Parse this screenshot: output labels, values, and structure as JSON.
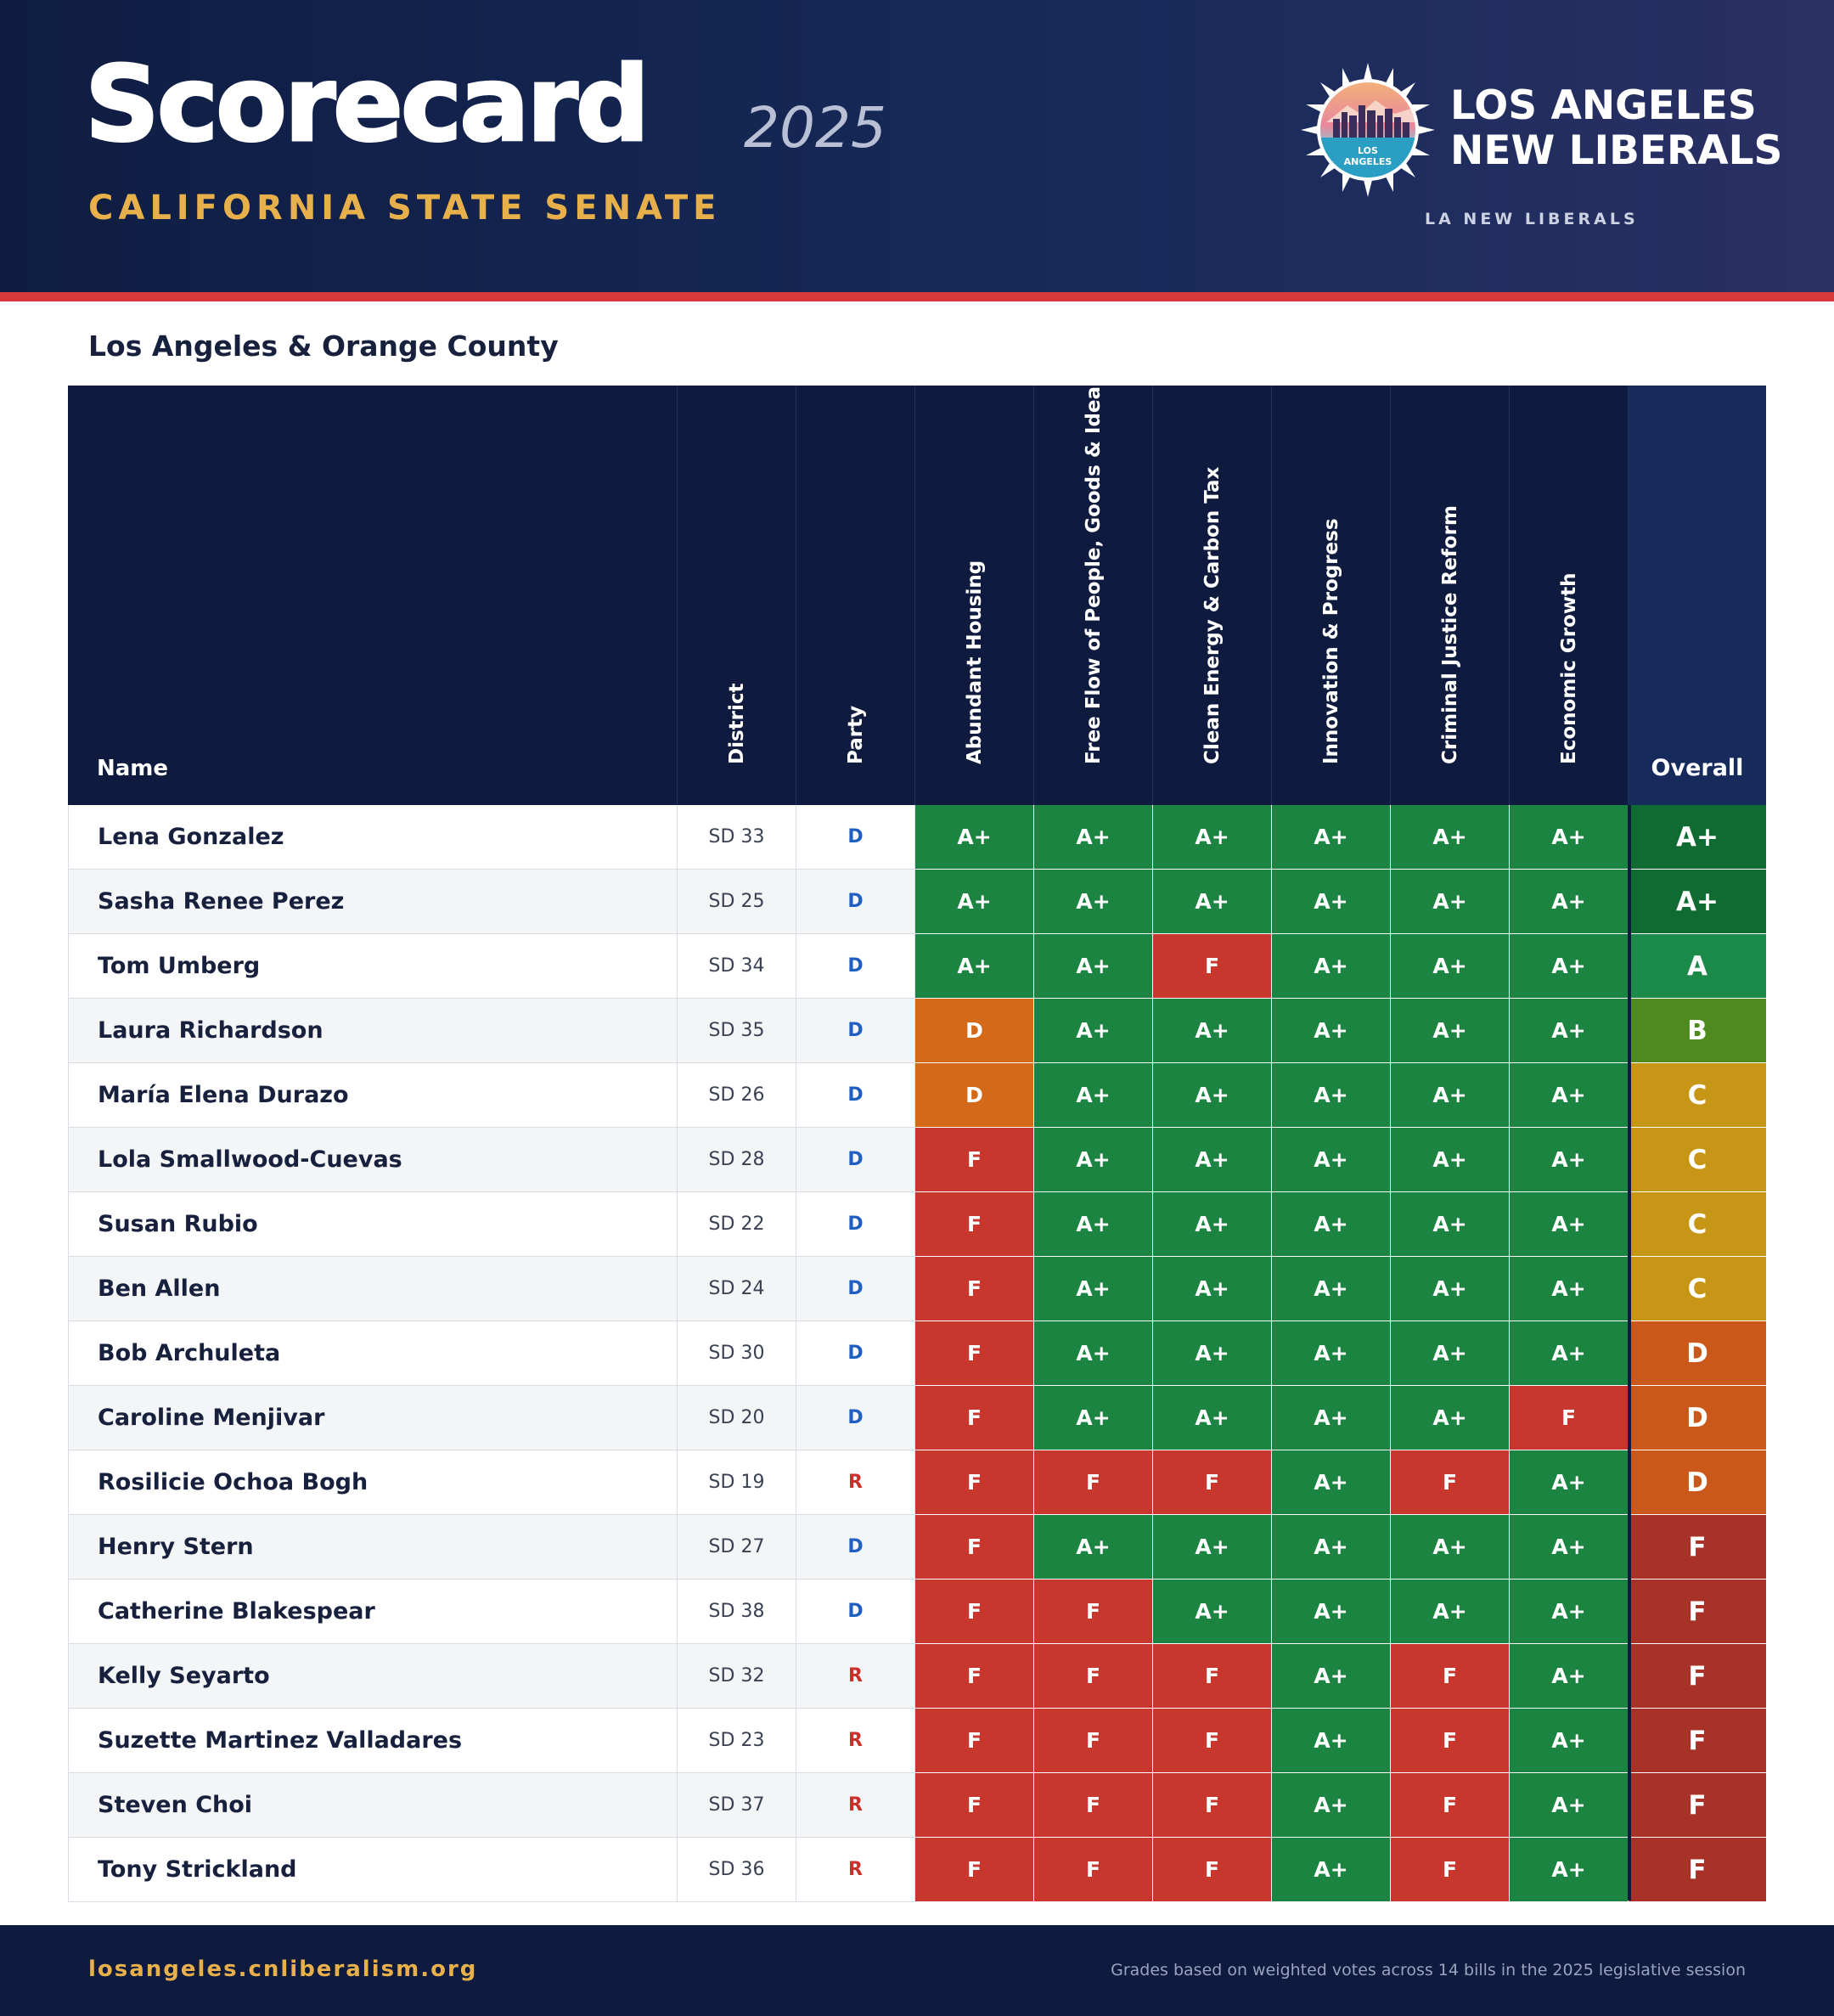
{
  "header": {
    "title": "Scorecard",
    "year": "2025",
    "subtitle": "CALIFORNIA STATE SENATE",
    "org_name_line1": "LOS ANGELES",
    "org_name_line2": "NEW LIBERALS",
    "org_tag": "LA NEW LIBERALS",
    "logo_text_line1": "LOS",
    "logo_text_line2": "ANGELES"
  },
  "region": "Los Angeles & Orange County",
  "table": {
    "columns": {
      "name": "Name",
      "district": "District",
      "party": "Party",
      "categories": [
        "Abundant Housing",
        "Free Flow of People, Goods & Ideas",
        "Clean Energy & Carbon Tax",
        "Innovation & Progress",
        "Criminal Justice Reform",
        "Economic Growth"
      ],
      "overall": "Overall"
    },
    "rows": [
      {
        "name": "Lena Gonzalez",
        "district": "SD 33",
        "party": "D",
        "grades": [
          "A+",
          "A+",
          "A+",
          "A+",
          "A+",
          "A+"
        ],
        "overall": "A+"
      },
      {
        "name": "Sasha Renee Perez",
        "district": "SD 25",
        "party": "D",
        "grades": [
          "A+",
          "A+",
          "A+",
          "A+",
          "A+",
          "A+"
        ],
        "overall": "A+"
      },
      {
        "name": "Tom Umberg",
        "district": "SD 34",
        "party": "D",
        "grades": [
          "A+",
          "A+",
          "F",
          "A+",
          "A+",
          "A+"
        ],
        "overall": "A"
      },
      {
        "name": "Laura Richardson",
        "district": "SD 35",
        "party": "D",
        "grades": [
          "D",
          "A+",
          "A+",
          "A+",
          "A+",
          "A+"
        ],
        "overall": "B"
      },
      {
        "name": "María Elena Durazo",
        "district": "SD 26",
        "party": "D",
        "grades": [
          "D",
          "A+",
          "A+",
          "A+",
          "A+",
          "A+"
        ],
        "overall": "C"
      },
      {
        "name": "Lola Smallwood-Cuevas",
        "district": "SD 28",
        "party": "D",
        "grades": [
          "F",
          "A+",
          "A+",
          "A+",
          "A+",
          "A+"
        ],
        "overall": "C"
      },
      {
        "name": "Susan Rubio",
        "district": "SD 22",
        "party": "D",
        "grades": [
          "F",
          "A+",
          "A+",
          "A+",
          "A+",
          "A+"
        ],
        "overall": "C"
      },
      {
        "name": "Ben Allen",
        "district": "SD 24",
        "party": "D",
        "grades": [
          "F",
          "A+",
          "A+",
          "A+",
          "A+",
          "A+"
        ],
        "overall": "C"
      },
      {
        "name": "Bob Archuleta",
        "district": "SD 30",
        "party": "D",
        "grades": [
          "F",
          "A+",
          "A+",
          "A+",
          "A+",
          "A+"
        ],
        "overall": "D"
      },
      {
        "name": "Caroline Menjivar",
        "district": "SD 20",
        "party": "D",
        "grades": [
          "F",
          "A+",
          "A+",
          "A+",
          "A+",
          "F"
        ],
        "overall": "D"
      },
      {
        "name": "Rosilicie Ochoa Bogh",
        "district": "SD 19",
        "party": "R",
        "grades": [
          "F",
          "F",
          "F",
          "A+",
          "F",
          "A+"
        ],
        "overall": "D"
      },
      {
        "name": "Henry Stern",
        "district": "SD 27",
        "party": "D",
        "grades": [
          "F",
          "A+",
          "A+",
          "A+",
          "A+",
          "A+"
        ],
        "overall": "F"
      },
      {
        "name": "Catherine Blakespear",
        "district": "SD 38",
        "party": "D",
        "grades": [
          "F",
          "F",
          "A+",
          "A+",
          "A+",
          "A+"
        ],
        "overall": "F"
      },
      {
        "name": "Kelly Seyarto",
        "district": "SD 32",
        "party": "R",
        "grades": [
          "F",
          "F",
          "F",
          "A+",
          "F",
          "A+"
        ],
        "overall": "F"
      },
      {
        "name": "Suzette Martinez Valladares",
        "district": "SD 23",
        "party": "R",
        "grades": [
          "F",
          "F",
          "F",
          "A+",
          "F",
          "A+"
        ],
        "overall": "F"
      },
      {
        "name": "Steven Choi",
        "district": "SD 37",
        "party": "R",
        "grades": [
          "F",
          "F",
          "F",
          "A+",
          "F",
          "A+"
        ],
        "overall": "F"
      },
      {
        "name": "Tony Strickland",
        "district": "SD 36",
        "party": "R",
        "grades": [
          "F",
          "F",
          "F",
          "A+",
          "F",
          "A+"
        ],
        "overall": "F"
      }
    ]
  },
  "colors": {
    "grade": {
      "A+": "#1b8440",
      "D": "#d4691a",
      "F": "#c7372d"
    },
    "overall": {
      "A+": "#0f6b32",
      "A": "#1c8a48",
      "B": "#4f8a1e",
      "C": "#c79616",
      "D": "#c9581a",
      "F": "#a93228"
    },
    "party": {
      "D": "#1f5fbf",
      "R": "#c8302a"
    },
    "accent_gold": "#e8b04a",
    "accent_red": "#d8393a",
    "navy": "#0e1b3e"
  },
  "footer": {
    "url": "losangeles.cnliberalism.org",
    "note": "Grades based on weighted votes across 14 bills in the 2025 legislative session"
  }
}
